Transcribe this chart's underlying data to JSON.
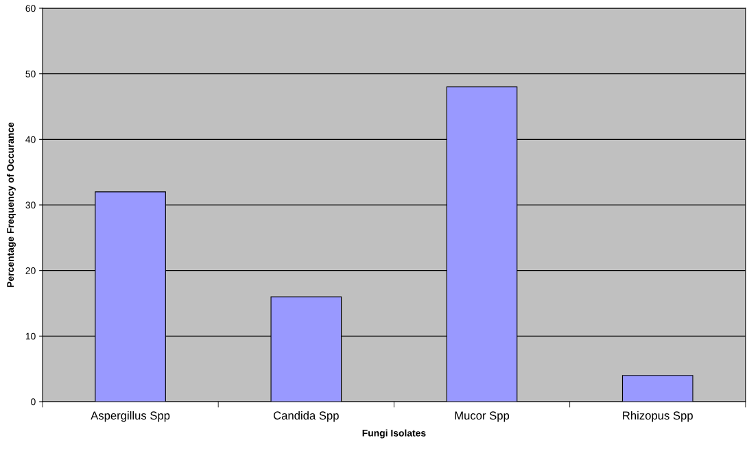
{
  "chart_data": {
    "type": "bar",
    "xlabel": "Fungi Isolates",
    "ylabel": "Percentage Frequency of Occurance",
    "categories": [
      "Aspergillus Spp",
      "Candida Spp",
      "Mucor Spp",
      "Rhizopus Spp"
    ],
    "values": [
      32,
      16,
      48,
      4
    ],
    "color": "#9999ff",
    "ylim": [
      0,
      60
    ],
    "yticks": [
      0,
      10,
      20,
      30,
      40,
      50,
      60
    ],
    "grid": "y",
    "legend": false
  }
}
